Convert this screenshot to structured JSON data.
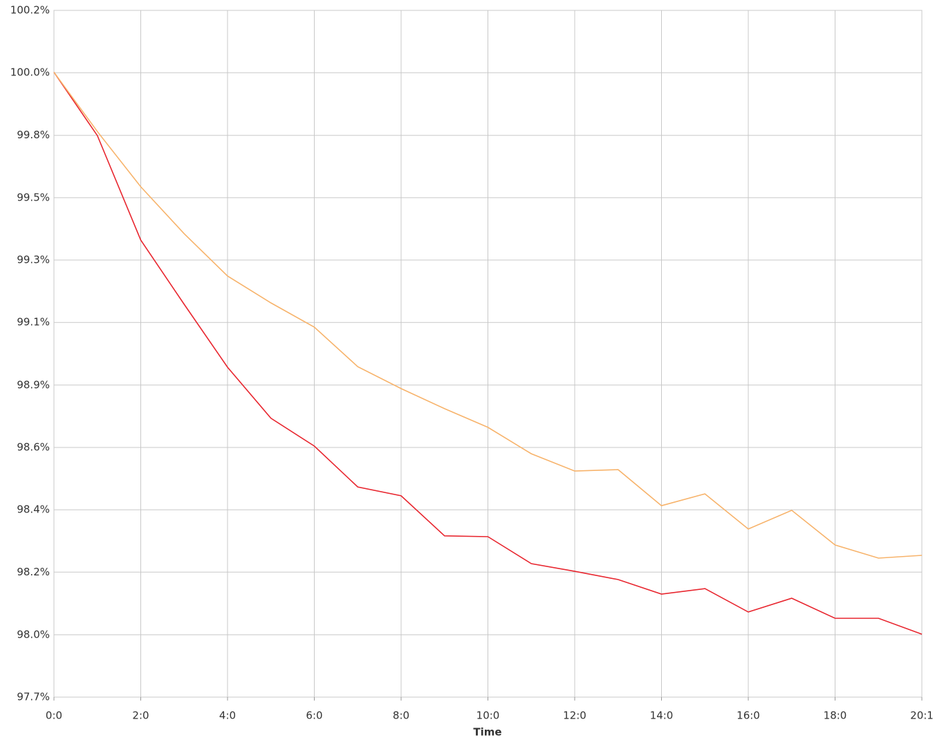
{
  "chart_data": {
    "type": "line",
    "x_label": "Time",
    "categories": [
      "0:0",
      null,
      "2:0",
      null,
      "4:0",
      null,
      "6:0",
      null,
      "8:0",
      null,
      "10:0",
      null,
      "12:0",
      null,
      "14:0",
      null,
      "16:0",
      null,
      "18:0",
      null,
      "20:1"
    ],
    "series": [
      {
        "color": "#e8262f",
        "values": [
          100.0,
          99.769,
          99.389,
          99.155,
          98.926,
          98.74,
          98.639,
          98.49,
          98.458,
          98.312,
          98.309,
          98.211,
          98.183,
          98.153,
          98.1,
          98.12,
          98.035,
          98.085,
          98.012,
          98.012,
          97.954
        ]
      },
      {
        "color": "#f7b36b",
        "values": [
          100.0,
          99.784,
          99.583,
          99.412,
          99.258,
          99.16,
          99.072,
          98.928,
          98.848,
          98.775,
          98.707,
          98.611,
          98.548,
          98.553,
          98.422,
          98.465,
          98.337,
          98.405,
          98.279,
          98.231,
          98.241
        ]
      }
    ],
    "ylim": [
      97.725,
      100.225
    ],
    "yticks": [
      {
        "value": 100.225,
        "label": "100.2%"
      },
      {
        "value": 99.998,
        "label": "100.0%"
      },
      {
        "value": 99.77,
        "label": "99.8%"
      },
      {
        "value": 99.543,
        "label": "99.5%"
      },
      {
        "value": 99.316,
        "label": "99.3%"
      },
      {
        "value": 99.089,
        "label": "99.1%"
      },
      {
        "value": 98.861,
        "label": "98.9%"
      },
      {
        "value": 98.634,
        "label": "98.6%"
      },
      {
        "value": 98.407,
        "label": "98.4%"
      },
      {
        "value": 98.18,
        "label": "98.2%"
      },
      {
        "value": 97.952,
        "label": "98.0%"
      },
      {
        "value": 97.725,
        "label": "97.7%"
      }
    ],
    "grid": true
  }
}
